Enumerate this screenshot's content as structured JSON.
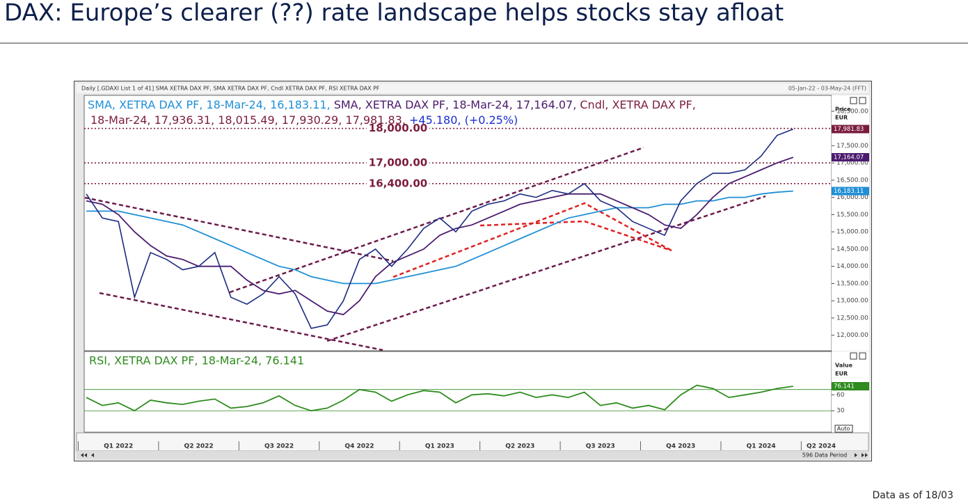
{
  "slide": {
    "title": "DAX: Europe’s clearer (??) rate landscape helps stocks stay afloat",
    "footnote": "Data as of 18/03"
  },
  "chart_data": [
    {
      "type": "line",
      "header": "Daily [.GDAXI List 1 of 41] SMA XETRA DAX PF, SMA XETRA DAX PF, Cndl XETRA DAX PF, RSI XETRA DAX PF",
      "date_range": "05-Jan-22 - 03-May-24 (FFT)",
      "y_label": "Price",
      "y_unit": "EUR",
      "categories": [
        "Q1 2022",
        null,
        null,
        null,
        null,
        "Q2 2022",
        null,
        null,
        null,
        null,
        "Q3 2022",
        null,
        null,
        null,
        null,
        "Q4 2022",
        null,
        null,
        null,
        null,
        "Q1 2023",
        null,
        null,
        null,
        null,
        "Q2 2023",
        null,
        null,
        null,
        null,
        "Q3 2023",
        null,
        null,
        null,
        null,
        "Q4 2023",
        null,
        null,
        null,
        null,
        "Q1 2024",
        null,
        null,
        null,
        null,
        "Q2 2024",
        null
      ],
      "series": [
        {
          "name": "SMA, XETRA DAX PF, 18-Mar-24, 16,183.11,",
          "color": "#1f8fd6",
          "values": [
            15600,
            15600,
            15600,
            15500,
            15400,
            15300,
            15200,
            15000,
            14800,
            14600,
            14400,
            14200,
            14000,
            13900,
            13700,
            13600,
            13500,
            13500,
            13500,
            13600,
            13700,
            13800,
            13900,
            14000,
            14200,
            14400,
            14600,
            14800,
            15000,
            15200,
            15400,
            15500,
            15600,
            15700,
            15700,
            15700,
            15800,
            15800,
            15900,
            15900,
            16000,
            16000,
            16100,
            16150,
            16183.11,
            null,
            null
          ]
        },
        {
          "name": "SMA, XETRA DAX PF, 18-Mar-24, 17,164.07,",
          "color": "#4b1a6e",
          "values": [
            15900,
            15800,
            15500,
            15000,
            14600,
            14300,
            14200,
            14000,
            14000,
            14000,
            13600,
            13300,
            13200,
            13300,
            13000,
            12700,
            12600,
            13000,
            13700,
            14100,
            14300,
            14500,
            14900,
            15100,
            15200,
            15400,
            15600,
            15800,
            15900,
            16000,
            16100,
            16100,
            16100,
            15900,
            15700,
            15500,
            15200,
            15100,
            15500,
            16000,
            16400,
            16600,
            16800,
            17000,
            17164.07,
            null,
            null
          ]
        },
        {
          "name": "Cndl, XETRA DAX PF,",
          "color": "#1a2a80",
          "values": [
            16100,
            15400,
            15300,
            13100,
            14400,
            14200,
            13900,
            14000,
            14400,
            13100,
            12900,
            13200,
            13700,
            13200,
            12200,
            12300,
            13000,
            14200,
            14500,
            14000,
            14500,
            15100,
            15400,
            15000,
            15600,
            15800,
            15900,
            16100,
            16000,
            16200,
            16100,
            16400,
            15900,
            15700,
            15300,
            15100,
            14900,
            15900,
            16400,
            16700,
            16700,
            16800,
            17200,
            17800,
            17981.83,
            null,
            null
          ]
        }
      ],
      "ohlc_label": "18-Mar-24, 17,936.31, 18,015.49, 17,930.29, 17,981.83,",
      "change_label": "+45.180, (+0.25%)",
      "ylim": [
        11570,
        18900
      ],
      "yticks": [
        {
          "value": 12000,
          "label": "12,000.00"
        },
        {
          "value": 12500,
          "label": "12,500.00"
        },
        {
          "value": 13000,
          "label": "13,000.00"
        },
        {
          "value": 13500,
          "label": "13,500.00"
        },
        {
          "value": 14000,
          "label": "14,000.00"
        },
        {
          "value": 14500,
          "label": "14,500.00"
        },
        {
          "value": 15000,
          "label": "15,000.00"
        },
        {
          "value": 15500,
          "label": "15,500.00"
        },
        {
          "value": 16000,
          "label": "16,000.00"
        },
        {
          "value": 16500,
          "label": "16,500.00"
        },
        {
          "value": 17000,
          "label": "17,000.00"
        },
        {
          "value": 17500,
          "label": "17,500.00"
        },
        {
          "value": 18000,
          "label": "18,000.00"
        },
        {
          "value": 18500,
          "label": "18,500.00"
        }
      ],
      "reference_lines": [
        {
          "value": 18000,
          "label": "18,000.00",
          "color": "#7b1c3e"
        },
        {
          "value": 17000,
          "label": "17,000.00",
          "color": "#7b1c3e"
        },
        {
          "value": 16400,
          "label": "16,400.00",
          "color": "#7b1c3e"
        }
      ],
      "last_value_tags": [
        {
          "value": 17981.83,
          "label": "17,981.83",
          "color": "#7b1c3e"
        },
        {
          "value": 17164.07,
          "label": "17,164.07",
          "color": "#4b1a6e"
        },
        {
          "value": 16183.11,
          "label": "16,183.11",
          "color": "#1f8fd6"
        }
      ]
    },
    {
      "type": "line",
      "y_label": "Value",
      "y_unit": "EUR",
      "series": [
        {
          "name": "RSI, XETRA DAX PF, 18-Mar-24, 76.141",
          "color": "#2e8b1e",
          "values": [
            55,
            40,
            45,
            30,
            50,
            45,
            42,
            48,
            52,
            35,
            38,
            45,
            58,
            40,
            30,
            35,
            50,
            70,
            65,
            48,
            60,
            68,
            65,
            45,
            60,
            62,
            58,
            65,
            55,
            60,
            55,
            65,
            40,
            45,
            35,
            40,
            32,
            60,
            78,
            72,
            55,
            60,
            65,
            72,
            76.141,
            null,
            null
          ]
        }
      ],
      "ylim": [
        -9,
        139
      ],
      "yticks": [
        30,
        60
      ],
      "levels": [
        30,
        70
      ],
      "last_value_tag": {
        "value": 76.141,
        "label": "76.141",
        "color": "#2e8b1e"
      },
      "scale_button": "Auto",
      "footer": "596 Data Period"
    }
  ]
}
